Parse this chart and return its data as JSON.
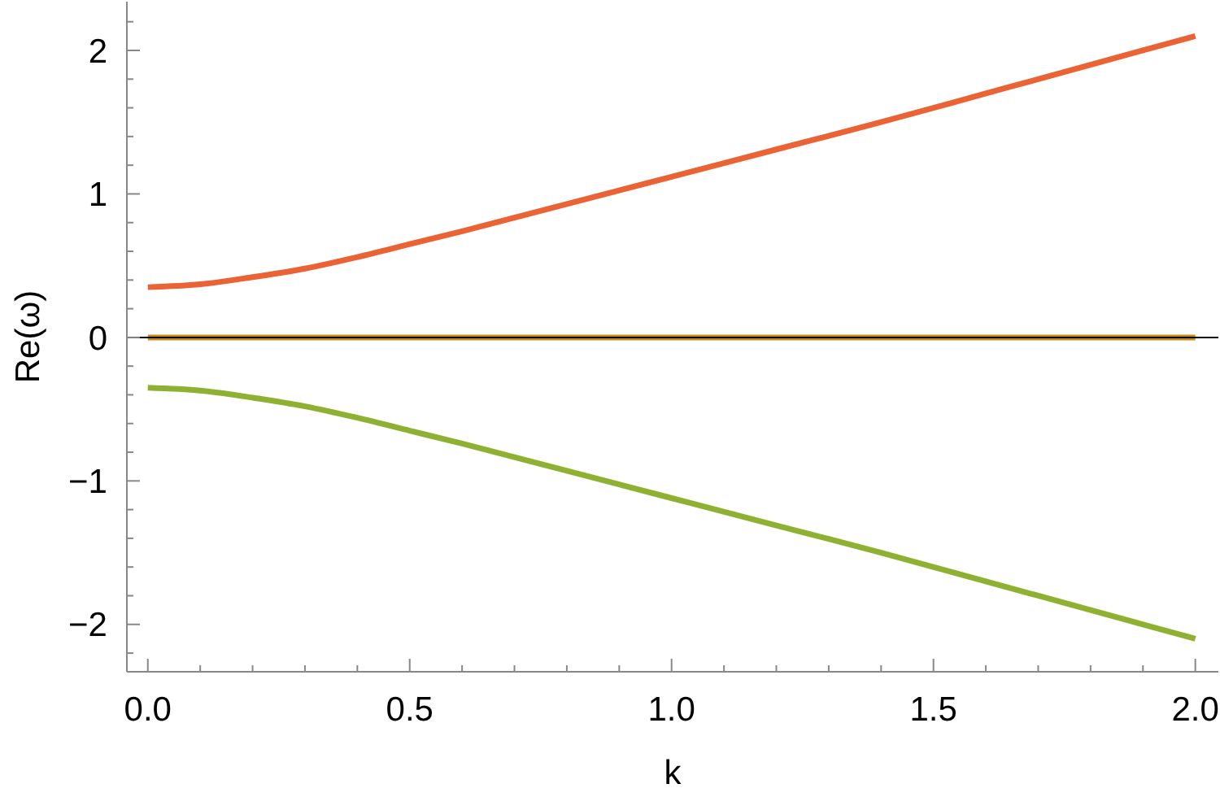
{
  "chart_data": {
    "type": "line",
    "xlabel": "k",
    "ylabel": "Re(ω)",
    "x": [
      0,
      0.1,
      0.2,
      0.3,
      0.4,
      0.5,
      0.6,
      0.8,
      1.0,
      1.2,
      1.4,
      1.6,
      1.8,
      2.0
    ],
    "series": [
      {
        "color": "#eb6235",
        "values": [
          0.35,
          0.37,
          0.42,
          0.48,
          0.56,
          0.65,
          0.74,
          0.93,
          1.12,
          1.31,
          1.5,
          1.7,
          1.9,
          2.1
        ]
      },
      {
        "color": "#c98a1a",
        "values": [
          0,
          0,
          0,
          0,
          0,
          0,
          0,
          0,
          0,
          0,
          0,
          0,
          0,
          0
        ]
      },
      {
        "color": "#8fb131",
        "values": [
          -0.35,
          -0.37,
          -0.42,
          -0.48,
          -0.56,
          -0.65,
          -0.74,
          -0.93,
          -1.12,
          -1.31,
          -1.5,
          -1.7,
          -1.9,
          -2.1
        ]
      }
    ],
    "xlim": [
      -0.04,
      2.044
    ],
    "xticks": [
      {
        "value": 0,
        "label": "0.0"
      },
      {
        "value": 0.1,
        "label": null
      },
      {
        "value": 0.2,
        "label": null
      },
      {
        "value": 0.3,
        "label": null
      },
      {
        "value": 0.4,
        "label": null
      },
      {
        "value": 0.5,
        "label": "0.5"
      },
      {
        "value": 0.6,
        "label": null
      },
      {
        "value": 0.7,
        "label": null
      },
      {
        "value": 0.8,
        "label": null
      },
      {
        "value": 0.9,
        "label": null
      },
      {
        "value": 1,
        "label": "1.0"
      },
      {
        "value": 1.1,
        "label": null
      },
      {
        "value": 1.2,
        "label": null
      },
      {
        "value": 1.3,
        "label": null
      },
      {
        "value": 1.4,
        "label": null
      },
      {
        "value": 1.5,
        "label": "1.5"
      },
      {
        "value": 1.6,
        "label": null
      },
      {
        "value": 1.7,
        "label": null
      },
      {
        "value": 1.8,
        "label": null
      },
      {
        "value": 1.9,
        "label": null
      },
      {
        "value": 2,
        "label": "2.0"
      }
    ],
    "ylim": [
      -2.33,
      2.34
    ],
    "yticks": [
      {
        "value": -2.2,
        "label": null
      },
      -2,
      {
        "value": -1.8,
        "label": null
      },
      {
        "value": -1.6,
        "label": null
      },
      {
        "value": -1.4,
        "label": null
      },
      {
        "value": -1.2,
        "label": null
      },
      -1,
      {
        "value": -0.8,
        "label": null
      },
      {
        "value": -0.6,
        "label": null
      },
      {
        "value": -0.4,
        "label": null
      },
      {
        "value": -0.2,
        "label": null
      },
      0,
      {
        "value": 0.2,
        "label": null
      },
      {
        "value": 0.4,
        "label": null
      },
      {
        "value": 0.6,
        "label": null
      },
      {
        "value": 0.8,
        "label": null
      },
      1,
      {
        "value": 1.2,
        "label": null
      },
      {
        "value": 1.4,
        "label": null
      },
      {
        "value": 1.6,
        "label": null
      },
      {
        "value": 1.8,
        "label": null
      },
      2,
      {
        "value": 2.2,
        "label": null
      }
    ],
    "ref_lines": [
      {
        "axis": "y",
        "value": 0,
        "color": "#000000"
      }
    ],
    "marker": "none",
    "line_style": "solid"
  }
}
